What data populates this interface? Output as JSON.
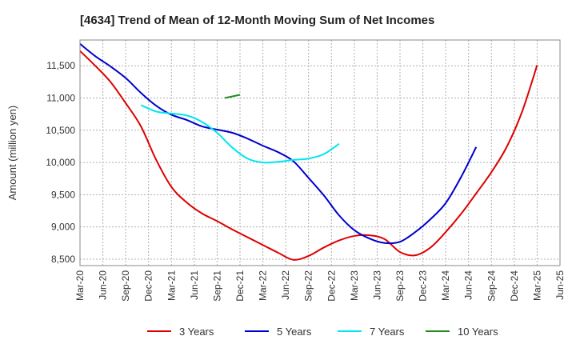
{
  "chart_data": {
    "type": "line",
    "title": "[4634]  Trend of Mean of 12-Month Moving Sum of Net Incomes",
    "xlabel": "",
    "ylabel": "Amount (million yen)",
    "ylim": [
      8400,
      11900
    ],
    "yticks": [
      8500,
      9000,
      9500,
      10000,
      10500,
      11000,
      11500
    ],
    "ytick_labels": [
      "8,500",
      "9,000",
      "9,500",
      "10,000",
      "10,500",
      "11,000",
      "11,500"
    ],
    "xticks": [
      "Mar-20",
      "Jun-20",
      "Sep-20",
      "Dec-20",
      "Mar-21",
      "Jun-21",
      "Sep-21",
      "Dec-21",
      "Mar-22",
      "Jun-22",
      "Sep-22",
      "Dec-22",
      "Mar-23",
      "Jun-23",
      "Sep-23",
      "Dec-23",
      "Mar-24",
      "Jun-24",
      "Sep-24",
      "Dec-24",
      "Mar-25",
      "Jun-25"
    ],
    "grid": true,
    "legend_position": "bottom",
    "series": [
      {
        "name": "3 Years",
        "color": "#dd0000",
        "start_index": 0,
        "values": [
          11730,
          11500,
          11250,
          10920,
          10560,
          10040,
          9620,
          9380,
          9210,
          9090,
          8960,
          8840,
          8720,
          8600,
          8490,
          8550,
          8680,
          8790,
          8860,
          8870,
          8810,
          8610,
          8560,
          8680,
          8920,
          9200,
          9520,
          9850,
          10240,
          10780,
          11510
        ]
      },
      {
        "name": "5 Years",
        "color": "#0000cc",
        "start_index": 0,
        "values": [
          11840,
          11650,
          11490,
          11310,
          11080,
          10880,
          10740,
          10660,
          10560,
          10510,
          10460,
          10370,
          10260,
          10160,
          10020,
          9760,
          9490,
          9180,
          8950,
          8820,
          8750,
          8770,
          8920,
          9120,
          9370,
          9770,
          10240
        ]
      }
    ],
    "series_extra": [
      {
        "name": "7 Years",
        "color": "#00e5ee",
        "start_index": 8,
        "values": [
          10890,
          10790,
          10760,
          10730,
          10630,
          10460,
          10230,
          10060,
          10000,
          10010,
          10040,
          10060,
          10130,
          10290
        ]
      },
      {
        "name": "10 Years",
        "color": "#228b22",
        "start_index": 19,
        "values": [
          11000,
          11050
        ]
      }
    ]
  }
}
